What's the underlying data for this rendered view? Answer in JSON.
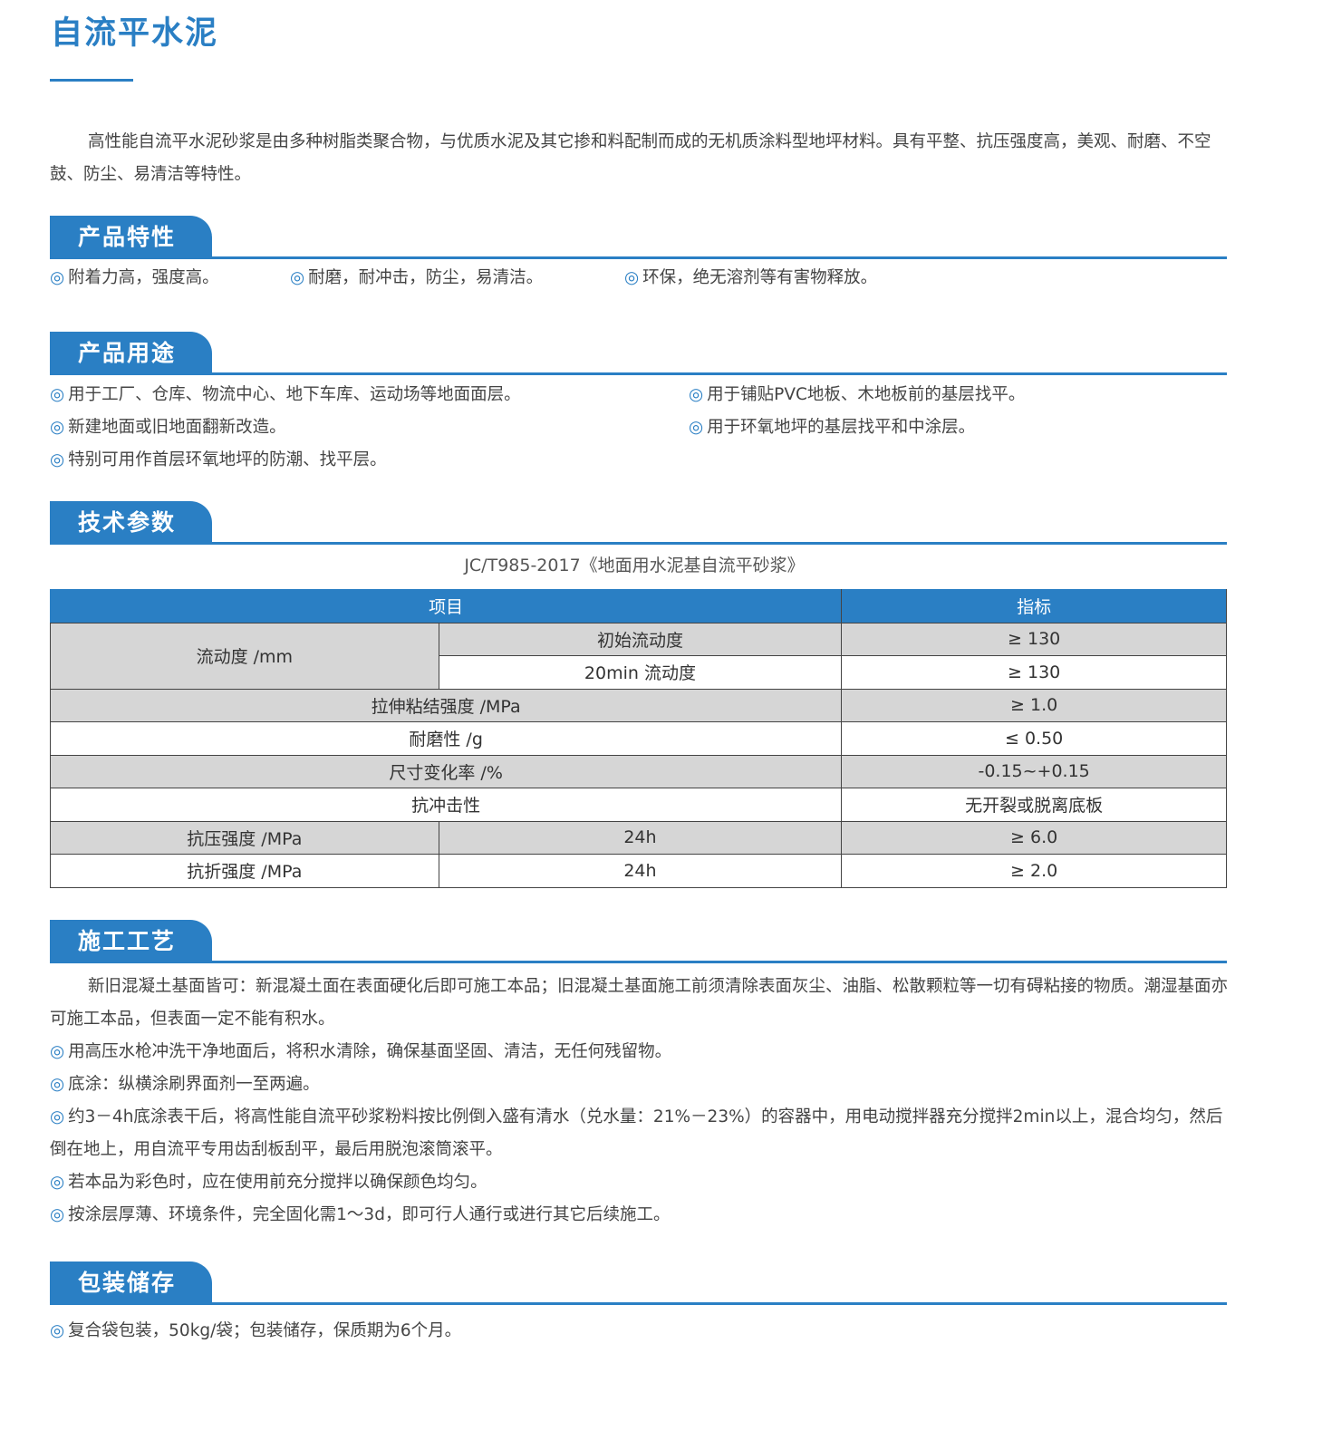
{
  "title": "自流平水泥",
  "intro": "高性能自流平水泥砂浆是由多种树脂类聚合物，与优质水泥及其它掺和料配制而成的无机质涂料型地坪材料。具有平整、抗压强度高，美观、耐磨、不空鼓、防尘、易清洁等特性。",
  "bullet_icon": "double-circle-icon",
  "colors": {
    "accent": "#2a7fc4",
    "row_gray": "#d6d6d6"
  },
  "features": {
    "heading": "产品特性",
    "items": [
      "附着力高，强度高。",
      "耐磨，耐冲击，防尘，易清洁。",
      "环保，绝无溶剂等有害物释放。"
    ]
  },
  "uses": {
    "heading": "产品用途",
    "items": [
      "用于工厂、仓库、物流中心、地下车库、运动场等地面面层。",
      "用于铺贴PVC地板、木地板前的基层找平。",
      "新建地面或旧地面翻新改造。",
      "用于环氧地坪的基层找平和中涂层。",
      "特别可用作首层环氧地坪的防潮、找平层。"
    ]
  },
  "tech": {
    "heading": "技术参数",
    "standard": "JC/T985-2017《地面用水泥基自流平砂浆》",
    "table": {
      "header": [
        "项目",
        "指标"
      ],
      "rows": [
        {
          "a": "流动度 /mm",
          "b": "初始流动度",
          "v": "≥ 130"
        },
        {
          "b": "20min 流动度",
          "v": "≥ 130"
        },
        {
          "a": "拉伸粘结强度 /MPa",
          "v": "≥ 1.0"
        },
        {
          "a": "耐磨性 /g",
          "v": "≤ 0.50"
        },
        {
          "a": "尺寸变化率 /%",
          "v": "-0.15~+0.15"
        },
        {
          "a": "抗冲击性",
          "v": "无开裂或脱离底板"
        },
        {
          "a": "抗压强度 /MPa",
          "b": "24h",
          "v": "≥ 6.0"
        },
        {
          "a": "抗折强度 /MPa",
          "b": "24h",
          "v": "≥ 2.0"
        }
      ]
    }
  },
  "process": {
    "heading": "施工工艺",
    "intro": "新旧混凝土基面皆可：新混凝土面在表面硬化后即可施工本品；旧混凝土基面施工前须清除表面灰尘、油脂、松散颗粒等一切有碍粘接的物质。潮湿基面亦可施工本品，但表面一定不能有积水。",
    "items": [
      "用高压水枪冲洗干净地面后，将积水清除，确保基面坚固、清洁，无任何残留物。",
      "底涂：纵横涂刷界面剂一至两遍。",
      "约3－4h底涂表干后，将高性能自流平砂浆粉料按比例倒入盛有清水（兑水量：21%－23%）的容器中，用电动搅拌器充分搅拌2min以上，混合均匀，然后倒在地上，用自流平专用齿刮板刮平，最后用脱泡滚筒滚平。",
      "若本品为彩色时，应在使用前充分搅拌以确保颜色均匀。",
      "按涂层厚薄、环境条件，完全固化需1～3d，即可行人通行或进行其它后续施工。"
    ]
  },
  "packaging": {
    "heading": "包装储存",
    "items": [
      "复合袋包装，50kg/袋；包装储存，保质期为6个月。"
    ]
  }
}
